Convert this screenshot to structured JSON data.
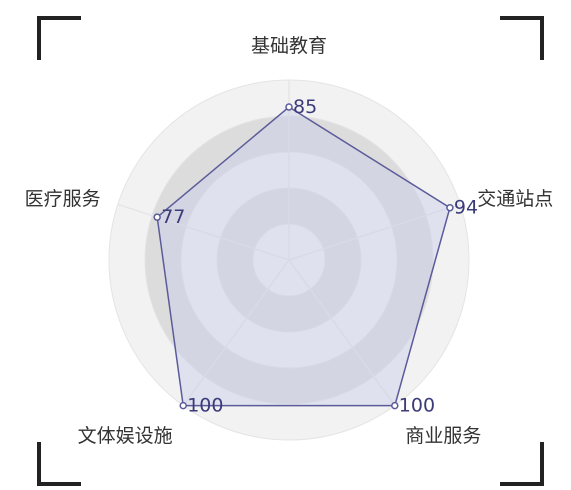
{
  "chart_data": {
    "type": "radar",
    "title": "",
    "indicators": [
      "基础教育",
      "交通站点",
      "商业服务",
      "文体娱设施",
      "医疗服务"
    ],
    "max": 100,
    "series": [
      {
        "values": [
          85,
          94,
          100,
          100,
          77
        ]
      }
    ],
    "colors": {
      "line": "#5b5b9a",
      "fill": "#c8cbe8",
      "ring_dark": "#dcdcdc",
      "ring_light": "#f2f2f2",
      "value_text": "#3b3b7a"
    },
    "grid": true,
    "legend": "none"
  }
}
